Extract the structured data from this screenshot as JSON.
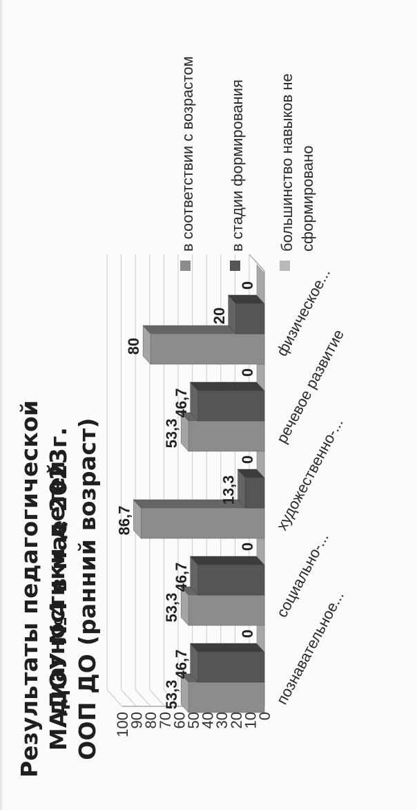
{
  "chart_data": {
    "type": "bar",
    "title": [
      "Результаты педагогической диагностики детей",
      "МАДОУ №4 в мае 2023г.",
      "ООП ДО (ранний возраст)"
    ],
    "categories": [
      "познавательное...",
      "социально-...",
      "художественно-...",
      "речевое развитие",
      "физическое..."
    ],
    "series": [
      {
        "name": "в соответствии с возрастом",
        "values": [
          53.3,
          53.3,
          86.7,
          53.3,
          80
        ],
        "value_labels": [
          "53,3",
          "53,3",
          "86,7",
          "53,3",
          "80"
        ],
        "color": "#8c8c8c"
      },
      {
        "name": "в стадии формирования",
        "values": [
          46.7,
          46.7,
          13.3,
          46.7,
          20
        ],
        "value_labels": [
          "46,7",
          "46,7",
          "13,3",
          "46,7",
          "20"
        ],
        "color": "#555555"
      },
      {
        "name": "большинство навыков не сформировано",
        "values": [
          0,
          0,
          0,
          0,
          0
        ],
        "value_labels": [
          "0",
          "0",
          "0",
          "0",
          "0"
        ],
        "color": "#b9b9b9"
      }
    ],
    "ylim": [
      0,
      100
    ],
    "y_ticks": [
      0,
      10,
      20,
      30,
      40,
      50,
      60,
      70,
      80,
      90,
      100
    ],
    "grid": true,
    "legend_position": "right",
    "style": "3d-bar"
  }
}
